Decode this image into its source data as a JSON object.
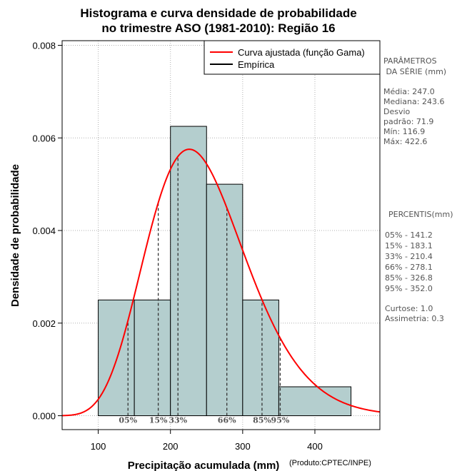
{
  "chart_data": {
    "type": "bar",
    "title_lines": [
      "Histograma e curva densidade de probabilidade",
      "no trimestre ASO (1981-2010): Região 16"
    ],
    "xlabel": "Precipitação acumulada (mm)",
    "credit": "(Produto:CPTEC/INPE)",
    "ylabel": "Densidade de probabilidade",
    "xlim": [
      50,
      490
    ],
    "ylim": [
      -0.0003,
      0.0081
    ],
    "x_ticks": [
      100,
      200,
      300,
      400
    ],
    "x_tick_labels": [
      "100",
      "200",
      "300",
      "400"
    ],
    "y_ticks": [
      0.0,
      0.002,
      0.004,
      0.006,
      0.008
    ],
    "y_tick_labels": [
      "0.000",
      "0.002",
      "0.004",
      "0.006",
      "0.008"
    ],
    "grid": true,
    "histogram": {
      "bins": [
        {
          "x0": 100,
          "x1": 150,
          "density": 0.0025
        },
        {
          "x0": 150,
          "x1": 200,
          "density": 0.0025
        },
        {
          "x0": 200,
          "x1": 250,
          "density": 0.00625
        },
        {
          "x0": 250,
          "x1": 300,
          "density": 0.005
        },
        {
          "x0": 300,
          "x1": 350,
          "density": 0.0025
        },
        {
          "x0": 350,
          "x1": 450,
          "density": 0.000625
        }
      ],
      "color": "#b4cece"
    },
    "gamma_fit": {
      "mean": 247.0,
      "sd": 71.9,
      "color": "#ff0000",
      "label": "Curva ajustada (função Gama)"
    },
    "empirical": {
      "color": "#000000",
      "label": "Empírica"
    },
    "percentiles": [
      {
        "label": "05%",
        "value": 141.2
      },
      {
        "label": "15%",
        "value": 183.1
      },
      {
        "label": "33%",
        "value": 210.4
      },
      {
        "label": "66%",
        "value": 278.1
      },
      {
        "label": "85%",
        "value": 326.8
      },
      {
        "label": "95%",
        "value": 352.0
      }
    ],
    "legend_position": "top-right"
  },
  "side_panel": {
    "params_lines": [
      "PARÂMETROS",
      " DA SÉRIE (mm)"
    ],
    "stats_lines": [
      "Média:  247.0",
      "Mediana:  243.6",
      "Desvio",
      "padrão:  71.9",
      "Mín:  116.9",
      "Máx:  422.6"
    ],
    "percentis_title": "PERCENTIS(mm)",
    "percentis_lines": [
      "05% -  141.2",
      "15% -  183.1",
      "33% -  210.4",
      "66% -  278.1",
      "85% -  326.8",
      "95% -  352.0"
    ],
    "extra_lines": [
      "Curtose:  1.0",
      "Assimetria:  0.3"
    ]
  }
}
